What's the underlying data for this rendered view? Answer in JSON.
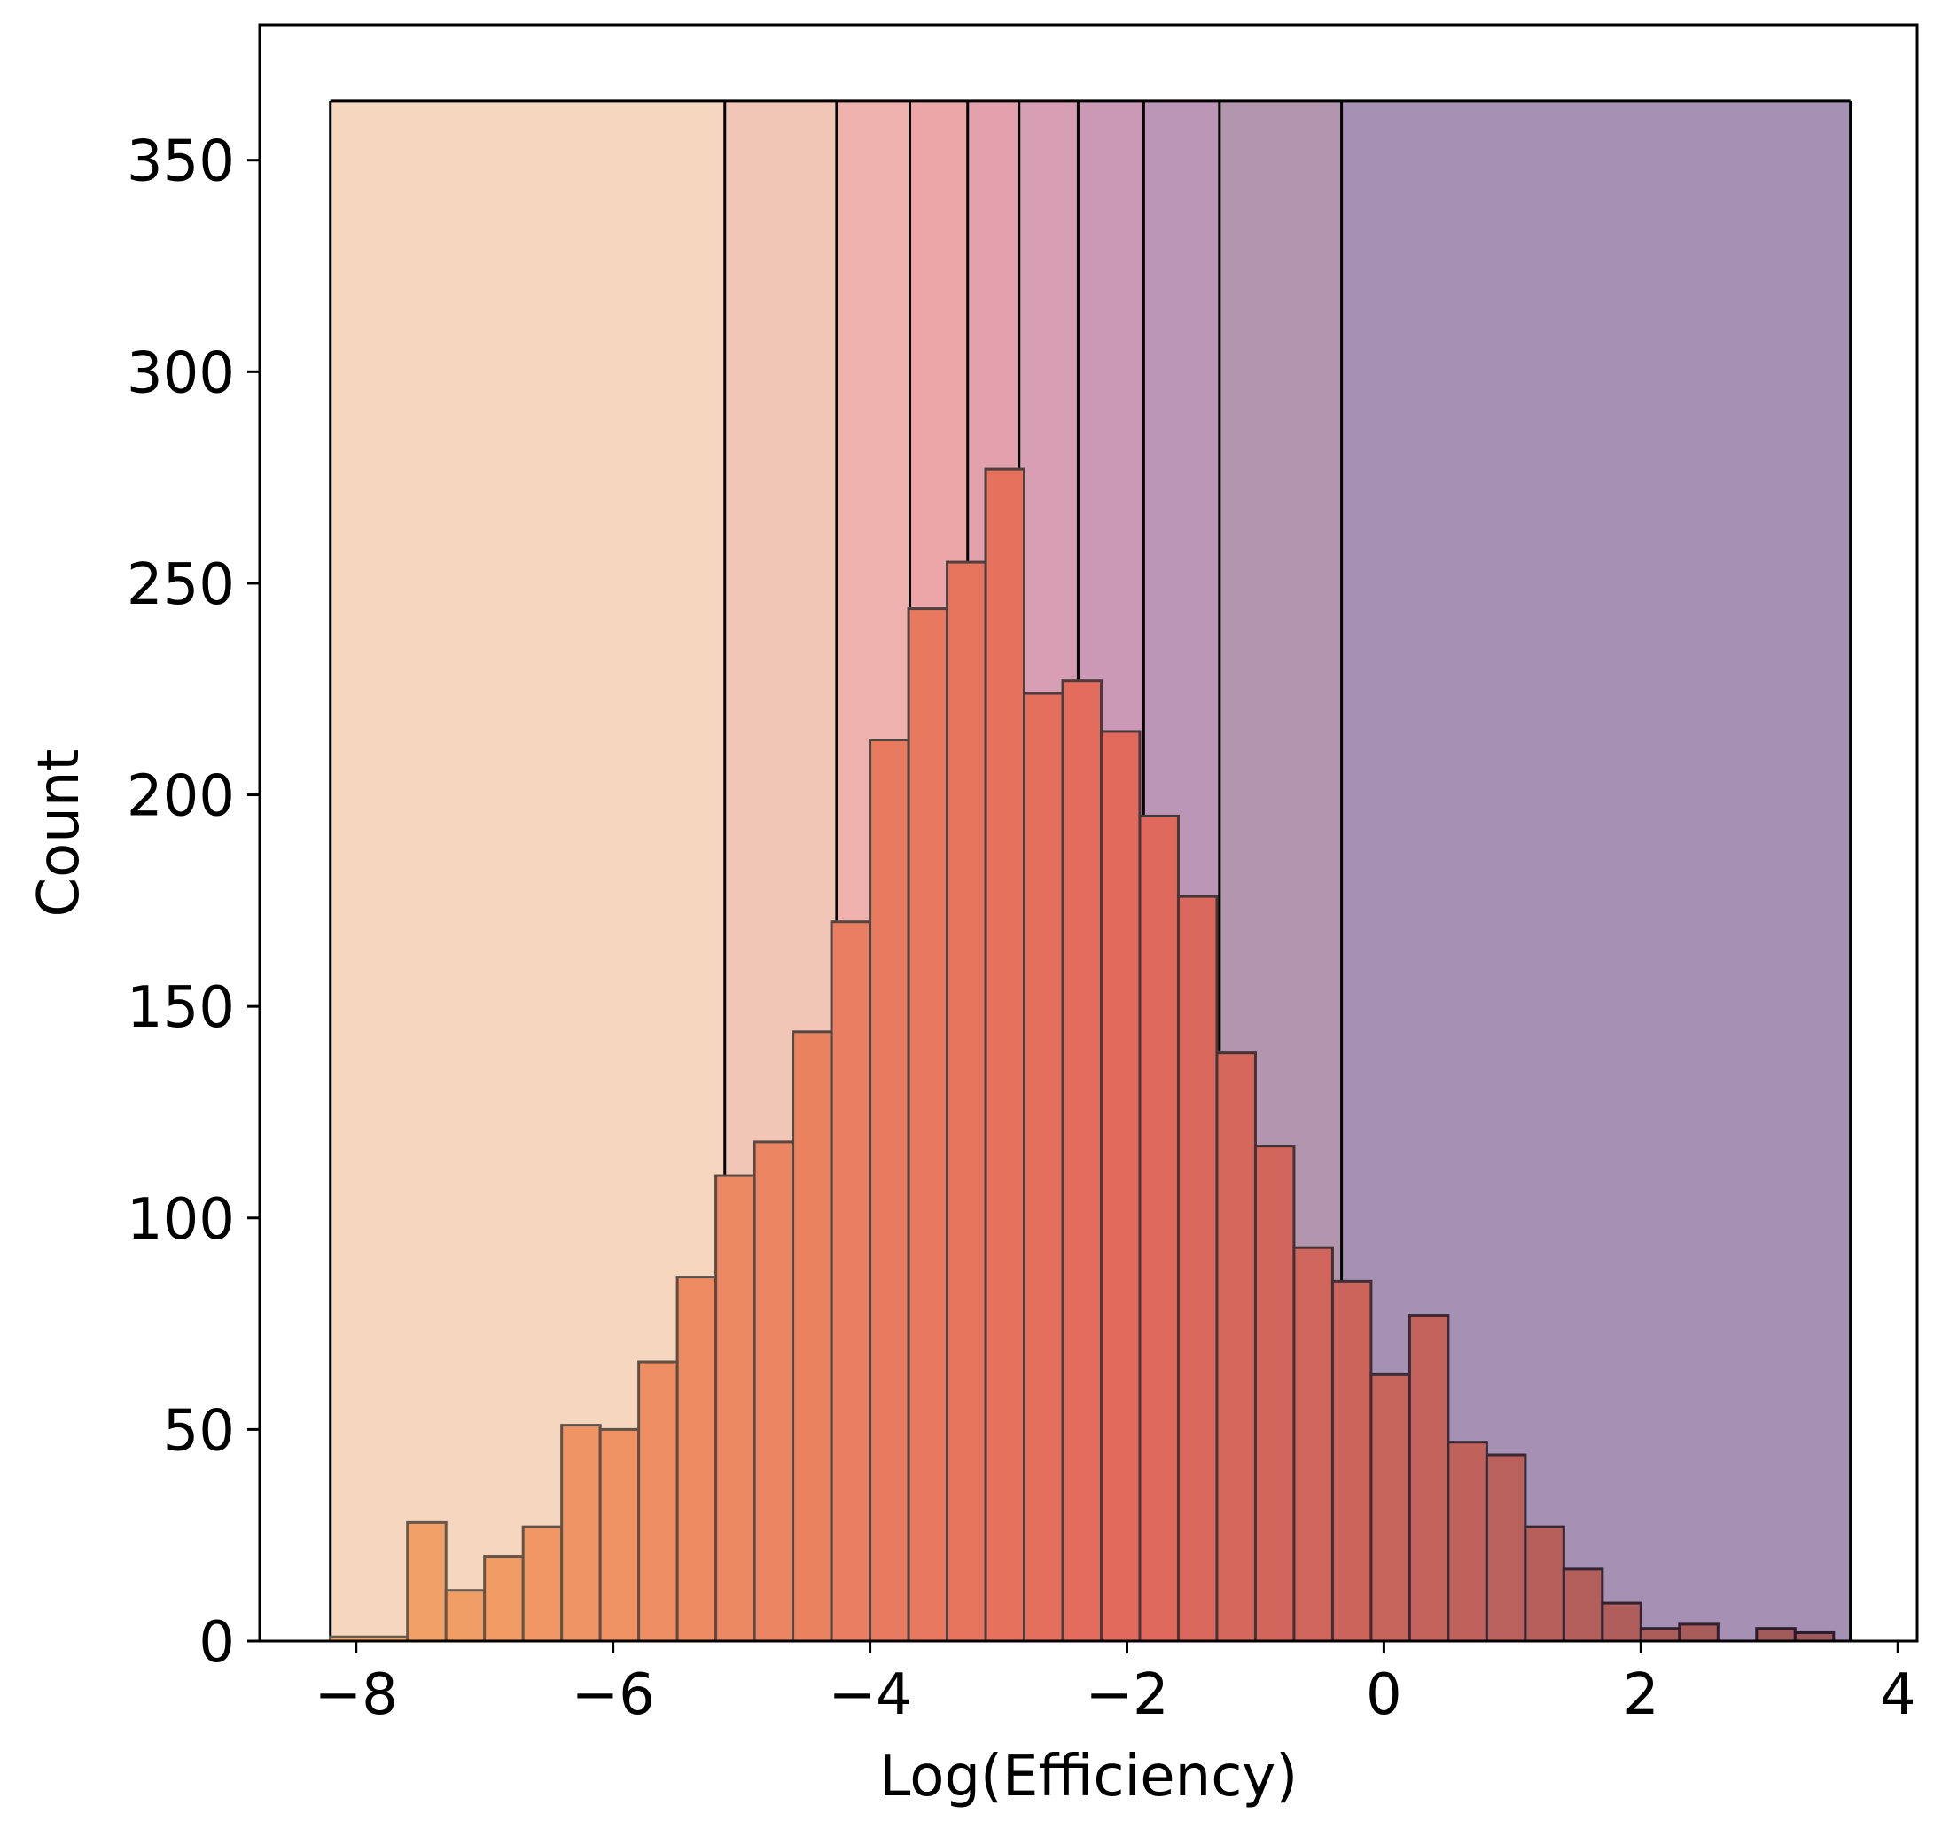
{
  "chart_data": {
    "type": "bar",
    "subtype": "histogram",
    "xlabel": "Log(Efficiency)",
    "ylabel": "Count",
    "xlim": [
      -8.75,
      4.15
    ],
    "ylim": [
      0,
      382
    ],
    "x_ticks": [
      -8,
      -6,
      -4,
      -2,
      0,
      2,
      4
    ],
    "x_tick_labels": [
      "−8",
      "−6",
      "−4",
      "−2",
      "0",
      "2",
      "4"
    ],
    "y_ticks": [
      0,
      50,
      100,
      150,
      200,
      250,
      300,
      350
    ],
    "y_tick_labels": [
      "0",
      "50",
      "100",
      "150",
      "200",
      "250",
      "300",
      "350"
    ],
    "grid": false,
    "legend": "none",
    "background_bands": {
      "top": 364,
      "edges": [
        -8.2,
        -5.13,
        -4.26,
        -3.69,
        -3.24,
        -2.84,
        -2.38,
        -1.87,
        -1.28,
        -0.33,
        3.63
      ],
      "colors": [
        "#f5d7c0",
        "#f2c6b7",
        "#eeb1ad",
        "#eda6a8",
        "#e3a0ad",
        "#d89eb4",
        "#cb99b6",
        "#bb96b6",
        "#b196ae",
        "#a491b3"
      ]
    },
    "bins": [
      {
        "x0": -8.2,
        "x1": -7.6,
        "count": 1
      },
      {
        "x0": -7.6,
        "x1": -7.3,
        "count": 28
      },
      {
        "x0": -7.3,
        "x1": -7.0,
        "count": 12
      },
      {
        "x0": -7.0,
        "x1": -6.7,
        "count": 20
      },
      {
        "x0": -6.7,
        "x1": -6.4,
        "count": 27
      },
      {
        "x0": -6.4,
        "x1": -6.1,
        "count": 51
      },
      {
        "x0": -6.1,
        "x1": -5.8,
        "count": 50
      },
      {
        "x0": -5.8,
        "x1": -5.5,
        "count": 66
      },
      {
        "x0": -5.5,
        "x1": -5.2,
        "count": 86
      },
      {
        "x0": -5.2,
        "x1": -4.9,
        "count": 110
      },
      {
        "x0": -4.9,
        "x1": -4.6,
        "count": 118
      },
      {
        "x0": -4.6,
        "x1": -4.3,
        "count": 144
      },
      {
        "x0": -4.3,
        "x1": -4.0,
        "count": 170
      },
      {
        "x0": -4.0,
        "x1": -3.7,
        "count": 213
      },
      {
        "x0": -3.7,
        "x1": -3.4,
        "count": 244
      },
      {
        "x0": -3.4,
        "x1": -3.1,
        "count": 255
      },
      {
        "x0": -3.1,
        "x1": -2.8,
        "count": 277
      },
      {
        "x0": -2.8,
        "x1": -2.5,
        "count": 224
      },
      {
        "x0": -2.5,
        "x1": -2.2,
        "count": 227
      },
      {
        "x0": -2.2,
        "x1": -1.9,
        "count": 215
      },
      {
        "x0": -1.9,
        "x1": -1.6,
        "count": 195
      },
      {
        "x0": -1.6,
        "x1": -1.3,
        "count": 176
      },
      {
        "x0": -1.3,
        "x1": -1.0,
        "count": 139
      },
      {
        "x0": -1.0,
        "x1": -0.7,
        "count": 117
      },
      {
        "x0": -0.7,
        "x1": -0.4,
        "count": 93
      },
      {
        "x0": -0.4,
        "x1": -0.1,
        "count": 85
      },
      {
        "x0": -0.1,
        "x1": 0.2,
        "count": 63
      },
      {
        "x0": 0.2,
        "x1": 0.5,
        "count": 77
      },
      {
        "x0": 0.5,
        "x1": 0.8,
        "count": 47
      },
      {
        "x0": 0.8,
        "x1": 1.1,
        "count": 44
      },
      {
        "x0": 1.1,
        "x1": 1.4,
        "count": 27
      },
      {
        "x0": 1.4,
        "x1": 1.7,
        "count": 17
      },
      {
        "x0": 1.7,
        "x1": 2.0,
        "count": 9
      },
      {
        "x0": 2.0,
        "x1": 2.3,
        "count": 3
      },
      {
        "x0": 2.3,
        "x1": 2.6,
        "count": 4
      },
      {
        "x0": 2.6,
        "x1": 2.9,
        "count": 0
      },
      {
        "x0": 2.9,
        "x1": 3.2,
        "count": 3
      },
      {
        "x0": 3.2,
        "x1": 3.5,
        "count": 2
      }
    ],
    "bar_color_start": "#f3a467",
    "bar_color_mid": "#e46a5c",
    "bar_color_end": "#9c5a5a",
    "bar_edge_start": "#6a5a4a",
    "bar_edge_end": "#2a1a2e"
  }
}
